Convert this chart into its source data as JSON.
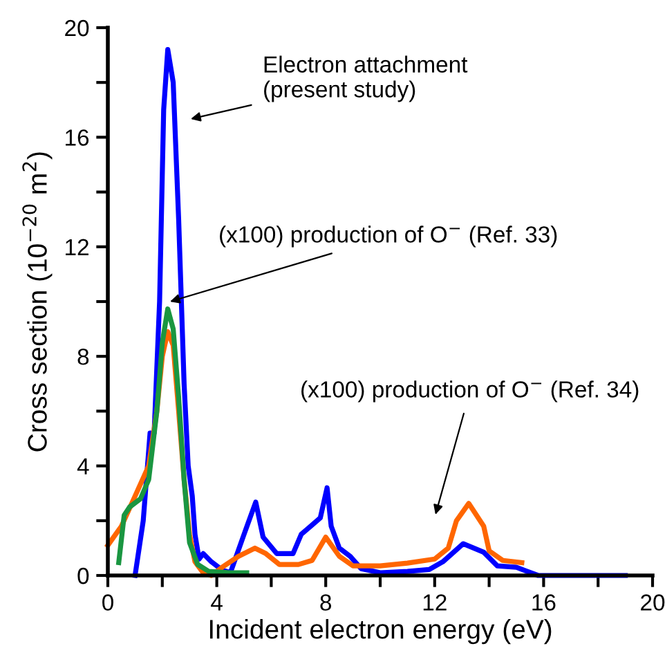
{
  "chart_data": {
    "type": "line",
    "xlabel": "Incident electron energy (eV)",
    "ylabel": "Cross section (10$^{−20}$ m$^{2}$)",
    "xlim": [
      0,
      20
    ],
    "ylim": [
      0,
      20
    ],
    "xticks": [
      0,
      {
        "value": 2,
        "label": null
      },
      4,
      {
        "value": 6,
        "label": null
      },
      8,
      {
        "value": 10,
        "label": null
      },
      12,
      {
        "value": 14,
        "label": null
      },
      16,
      {
        "value": 18,
        "label": null
      },
      20
    ],
    "yticks": [
      0,
      {
        "value": 2,
        "label": null
      },
      4,
      {
        "value": 6,
        "label": null
      },
      8,
      {
        "value": 10,
        "label": null
      },
      12,
      {
        "value": 14,
        "label": null
      },
      16,
      {
        "value": 18,
        "label": null
      },
      20
    ],
    "grid": false,
    "legend": false,
    "marker": "none",
    "line_style": "solid",
    "series": [
      {
        "color": "#0000ff",
        "x": [
          1.0,
          1.3,
          1.55,
          1.7,
          1.9,
          2.05,
          2.2,
          2.4,
          2.6,
          2.8,
          2.95,
          3.1,
          3.2,
          3.35,
          3.5,
          3.8,
          4.2,
          4.5,
          5.0,
          5.43,
          5.7,
          6.2,
          6.8,
          7.1,
          7.8,
          8.05,
          8.2,
          8.5,
          8.9,
          9.3,
          10,
          11,
          11.8,
          12.3,
          13.05,
          13.8,
          14.3,
          15.0,
          15.8,
          17,
          19
        ],
        "values": [
          0,
          2,
          5.2,
          5.2,
          10,
          17,
          19.2,
          18,
          13,
          7,
          4,
          2.9,
          1.5,
          0.6,
          0.8,
          0.5,
          0.2,
          0.1,
          1.5,
          2.68,
          1.4,
          0.8,
          0.8,
          1.5,
          2.1,
          3.2,
          1.8,
          1.0,
          0.7,
          0.25,
          0.1,
          0.15,
          0.22,
          0.5,
          1.16,
          0.85,
          0.35,
          0.3,
          0,
          0,
          0
        ]
      },
      {
        "color": "#ff6600",
        "x": [
          0,
          0.5,
          1.0,
          1.5,
          1.8,
          2.0,
          2.2,
          2.4,
          2.6,
          2.8,
          3.0,
          3.2,
          3.5,
          3.8,
          4.2,
          4.8,
          5.4,
          5.8,
          6.3,
          7.0,
          7.5,
          8.0,
          8.5,
          9.0,
          10,
          11,
          12,
          12.5,
          12.8,
          13.25,
          13.8,
          14.0,
          14.5,
          15.2
        ],
        "values": [
          1.1,
          1.8,
          2.9,
          4.0,
          6,
          8,
          8.9,
          8.4,
          6,
          3.5,
          1.5,
          0.5,
          0.1,
          0,
          0.3,
          0.7,
          1.0,
          0.8,
          0.4,
          0.4,
          0.55,
          1.4,
          0.7,
          0.35,
          0.35,
          0.45,
          0.6,
          1.0,
          2.0,
          2.63,
          1.8,
          0.9,
          0.55,
          0.47
        ]
      },
      {
        "color": "#1a9641",
        "x": [
          0.4,
          0.6,
          0.8,
          1.2,
          1.5,
          1.8,
          2.0,
          2.2,
          2.4,
          2.6,
          2.8,
          3.0,
          3.3,
          3.7,
          4.5,
          5.1
        ],
        "values": [
          0.47,
          2.2,
          2.5,
          2.8,
          3.5,
          6,
          8.5,
          9.73,
          9.0,
          6.5,
          3.5,
          1.2,
          0.4,
          0.15,
          0.1,
          0.1
        ]
      }
    ],
    "annotations": [
      "Electron attachment\n(present study)",
      "(x100) production of O$^{−}$ (Ref. 33)",
      "(x100) production of O$^{−}$ (Ref. 34)"
    ]
  }
}
